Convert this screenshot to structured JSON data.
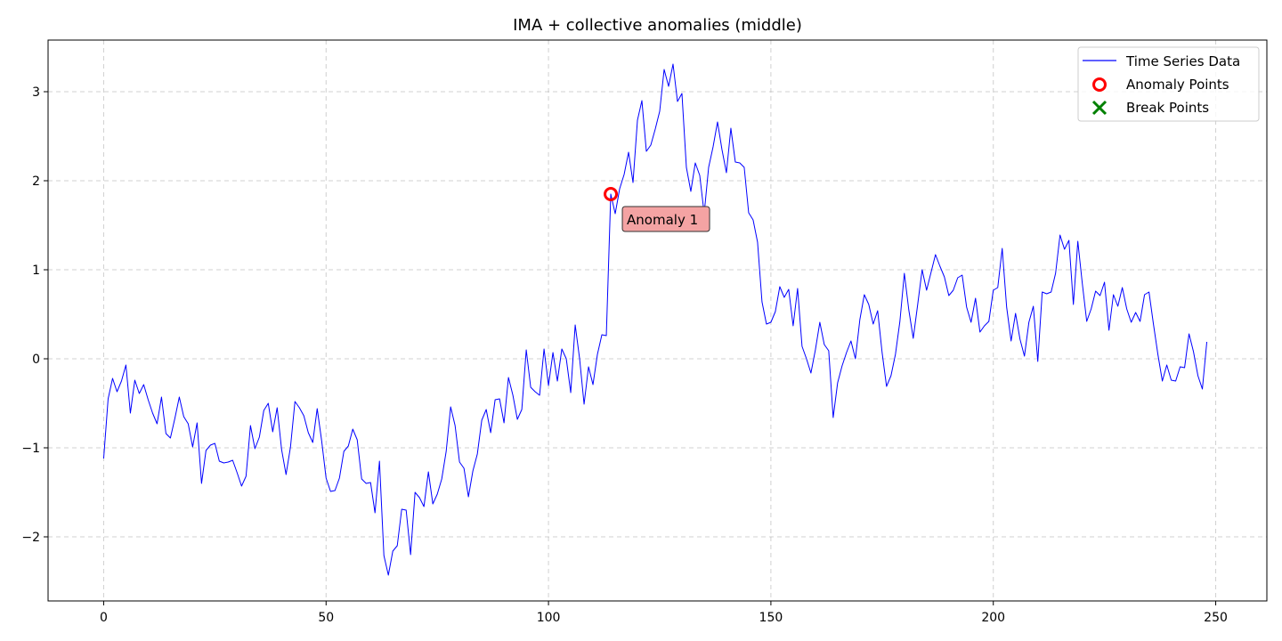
{
  "chart_data": {
    "type": "line",
    "title": "IMA + collective anomalies (middle)",
    "xlabel": "",
    "ylabel": "",
    "xlim": [
      -12.5,
      261.5
    ],
    "ylim": [
      -2.72,
      3.58
    ],
    "x_ticks": [
      0,
      50,
      100,
      150,
      200,
      250
    ],
    "y_ticks": [
      -2,
      -1,
      0,
      1,
      2,
      3
    ],
    "x_tick_labels": [
      "0",
      "50",
      "100",
      "150",
      "200",
      "250"
    ],
    "y_tick_labels": [
      "−2",
      "−1",
      "0",
      "1",
      "2",
      "3"
    ],
    "grid": true,
    "legend_position": "top-right",
    "series": [
      {
        "name": "Time Series Data",
        "color": "#0000ff",
        "x": [
          0,
          1,
          2,
          3,
          4,
          5,
          6,
          7,
          8,
          9,
          10,
          11,
          12,
          13,
          14,
          15,
          16,
          17,
          18,
          19,
          20,
          21,
          22,
          23,
          24,
          25,
          26,
          27,
          28,
          29,
          30,
          31,
          32,
          33,
          34,
          35,
          36,
          37,
          38,
          39,
          40,
          41,
          42,
          43,
          44,
          45,
          46,
          47,
          48,
          49,
          50,
          51,
          52,
          53,
          54,
          55,
          56,
          57,
          58,
          59,
          60,
          61,
          62,
          63,
          64,
          65,
          66,
          67,
          68,
          69,
          70,
          71,
          72,
          73,
          74,
          75,
          76,
          77,
          78,
          79,
          80,
          81,
          82,
          83,
          84,
          85,
          86,
          87,
          88,
          89,
          90,
          91,
          92,
          93,
          94,
          95,
          96,
          97,
          98,
          99,
          100,
          101,
          102,
          103,
          104,
          105,
          106,
          107,
          108,
          109,
          110,
          111,
          112,
          113,
          114,
          115,
          116,
          117,
          118,
          119,
          120,
          121,
          122,
          123,
          124,
          125,
          126,
          127,
          128,
          129,
          130,
          131,
          132,
          133,
          134,
          135,
          136,
          137,
          138,
          139,
          140,
          141,
          142,
          143,
          144,
          145,
          146,
          147,
          148,
          149,
          150,
          151,
          152,
          153,
          154,
          155,
          156,
          157,
          158,
          159,
          160,
          161,
          162,
          163,
          164,
          165,
          166,
          167,
          168,
          169,
          170,
          171,
          172,
          173,
          174,
          175,
          176,
          177,
          178,
          179,
          180,
          181,
          182,
          183,
          184,
          185,
          186,
          187,
          188,
          189,
          190,
          191,
          192,
          193,
          194,
          195,
          196,
          197,
          198,
          199,
          200,
          201,
          202,
          203,
          204,
          205,
          206,
          207,
          208,
          209,
          210,
          211,
          212,
          213,
          214,
          215,
          216,
          217,
          218,
          219,
          220,
          221,
          222,
          223,
          224,
          225,
          226,
          227,
          228,
          229,
          230,
          231,
          232,
          233,
          234,
          235,
          236,
          237,
          238,
          239,
          240,
          241,
          242,
          243,
          244,
          245,
          246,
          247,
          248
        ],
        "y": [
          -1.12,
          -0.45,
          -0.22,
          -0.37,
          -0.25,
          -0.07,
          -0.61,
          -0.24,
          -0.39,
          -0.29,
          -0.46,
          -0.61,
          -0.73,
          -0.43,
          -0.84,
          -0.89,
          -0.67,
          -0.43,
          -0.65,
          -0.73,
          -0.99,
          -0.72,
          -1.4,
          -1.03,
          -0.97,
          -0.95,
          -1.15,
          -1.17,
          -1.16,
          -1.14,
          -1.28,
          -1.43,
          -1.32,
          -0.75,
          -1.01,
          -0.88,
          -0.58,
          -0.5,
          -0.82,
          -0.55,
          -1.02,
          -1.3,
          -0.99,
          -0.48,
          -0.55,
          -0.64,
          -0.83,
          -0.94,
          -0.56,
          -0.92,
          -1.34,
          -1.49,
          -1.48,
          -1.34,
          -1.04,
          -0.98,
          -0.79,
          -0.91,
          -1.35,
          -1.4,
          -1.39,
          -1.73,
          -1.15,
          -2.21,
          -2.43,
          -2.16,
          -2.1,
          -1.69,
          -1.7,
          -2.2,
          -1.5,
          -1.56,
          -1.66,
          -1.27,
          -1.63,
          -1.52,
          -1.35,
          -1.04,
          -0.54,
          -0.75,
          -1.16,
          -1.23,
          -1.55,
          -1.26,
          -1.07,
          -0.69,
          -0.57,
          -0.83,
          -0.46,
          -0.45,
          -0.72,
          -0.21,
          -0.41,
          -0.68,
          -0.57,
          0.1,
          -0.32,
          -0.37,
          -0.41,
          0.11,
          -0.3,
          0.07,
          -0.25,
          0.11,
          0.0,
          -0.38,
          0.38,
          0.0,
          -0.51,
          -0.09,
          -0.29,
          0.05,
          0.27,
          0.26,
          1.85,
          1.63,
          1.91,
          2.07,
          2.32,
          1.98,
          2.68,
          2.9,
          2.33,
          2.4,
          2.58,
          2.78,
          3.25,
          3.06,
          3.31,
          2.89,
          2.98,
          2.15,
          1.88,
          2.2,
          2.06,
          1.63,
          2.15,
          2.38,
          2.66,
          2.35,
          2.09,
          2.59,
          2.21,
          2.2,
          2.15,
          1.64,
          1.56,
          1.31,
          0.64,
          0.39,
          0.41,
          0.53,
          0.81,
          0.69,
          0.78,
          0.37,
          0.79,
          0.14,
          0.0,
          -0.16,
          0.1,
          0.41,
          0.16,
          0.09,
          -0.66,
          -0.27,
          -0.08,
          0.07,
          0.2,
          0.0,
          0.44,
          0.72,
          0.61,
          0.39,
          0.54,
          0.07,
          -0.31,
          -0.19,
          0.05,
          0.42,
          0.96,
          0.55,
          0.23,
          0.61,
          1.0,
          0.77,
          0.97,
          1.17,
          1.04,
          0.92,
          0.71,
          0.77,
          0.91,
          0.94,
          0.58,
          0.41,
          0.68,
          0.3,
          0.37,
          0.42,
          0.77,
          0.8,
          1.24,
          0.58,
          0.2,
          0.51,
          0.22,
          0.03,
          0.41,
          0.59,
          -0.03,
          0.75,
          0.73,
          0.75,
          0.96,
          1.39,
          1.23,
          1.33,
          0.61,
          1.32,
          0.85,
          0.42,
          0.56,
          0.76,
          0.71,
          0.86,
          0.32,
          0.72,
          0.59,
          0.8,
          0.56,
          0.41,
          0.52,
          0.42,
          0.72,
          0.75,
          0.39,
          0.05,
          -0.25,
          -0.07,
          -0.24,
          -0.25,
          -0.09,
          -0.1,
          0.28,
          0.08,
          -0.19,
          -0.34,
          0.19
        ]
      },
      {
        "name": "Anomaly Points",
        "type": "scatter",
        "color": "#ff0000",
        "marker": "open-circle",
        "x": [
          114
        ],
        "y": [
          1.85
        ]
      },
      {
        "name": "Break Points",
        "type": "scatter",
        "color": "#008000",
        "marker": "x",
        "x": [],
        "y": []
      }
    ],
    "annotations": [
      {
        "text": "Anomaly 1",
        "x": 114,
        "y": 1.85,
        "background": "#f4a3a3"
      }
    ]
  }
}
